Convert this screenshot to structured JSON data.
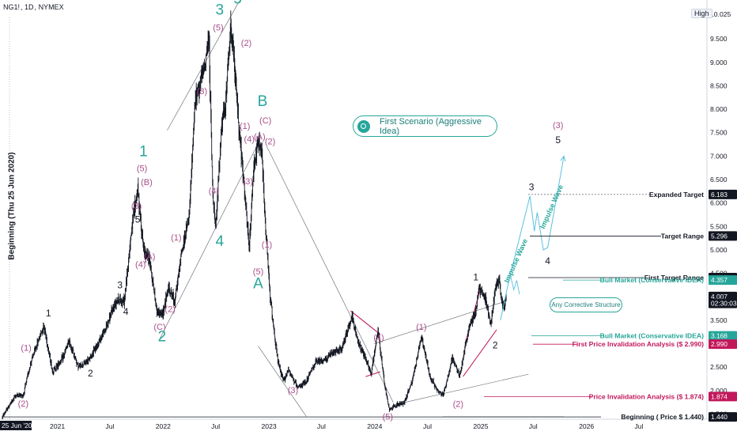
{
  "header": {
    "symbol": "NG1!",
    "interval": "1D",
    "exchange": "NYMEX",
    "high_label": "High"
  },
  "beginning_vertical": "Beginning (Thu 25 Jun 2020)",
  "scenario_label": "First Scenario (Aggressive Idea)",
  "corrective_label": "Any Corrective Structure",
  "colors": {
    "candles": "#131722",
    "teal": "#26a69a",
    "purple": "#a8508c",
    "magenta": "#c2185b",
    "cyan": "#5bc0de",
    "gray": "#9598a1",
    "axis": "#131722"
  },
  "chart_data": {
    "type": "candlestick",
    "title": "",
    "ylim": [
      1.2,
      10.1
    ],
    "yticks": [
      "10.025",
      "9.500",
      "9.000",
      "8.500",
      "8.000",
      "7.500",
      "7.000",
      "6.500",
      "6.000",
      "5.500",
      "5.000",
      "4.500",
      "4.000",
      "3.500",
      "3.000",
      "2.500",
      "2.000",
      "1.500"
    ],
    "xticks": [
      "25 Jun '20",
      "2021",
      "Jul",
      "2022",
      "Jul",
      "2023",
      "Jul",
      "2024",
      "Jul",
      "2025",
      "Jul",
      "2026",
      "Jul"
    ],
    "price_series": {
      "start": "2020-06-25",
      "points": [
        [
          "2020-06-25",
          1.44
        ],
        [
          "2020-08-10",
          1.9
        ],
        [
          "2020-09-05",
          1.9
        ],
        [
          "2020-10-01",
          2.6
        ],
        [
          "2020-11-15",
          3.4
        ],
        [
          "2020-12-15",
          2.4
        ],
        [
          "2021-01-20",
          2.7
        ],
        [
          "2021-02-10",
          3.05
        ],
        [
          "2021-03-15",
          2.5
        ],
        [
          "2021-04-20",
          2.65
        ],
        [
          "2021-06-15",
          3.3
        ],
        [
          "2021-07-25",
          3.95
        ],
        [
          "2021-08-20",
          3.9
        ],
        [
          "2021-09-15",
          5.5
        ],
        [
          "2021-10-05",
          6.3
        ],
        [
          "2021-10-25",
          5.0
        ],
        [
          "2021-11-15",
          4.8
        ],
        [
          "2021-12-10",
          3.7
        ],
        [
          "2021-12-28",
          3.6
        ],
        [
          "2022-01-20",
          4.2
        ],
        [
          "2022-02-10",
          3.9
        ],
        [
          "2022-03-07",
          5.0
        ],
        [
          "2022-04-01",
          5.7
        ],
        [
          "2022-04-20",
          8.1
        ],
        [
          "2022-05-05",
          8.5
        ],
        [
          "2022-05-20",
          8.8
        ],
        [
          "2022-06-08",
          9.5
        ],
        [
          "2022-06-20",
          6.4
        ],
        [
          "2022-07-01",
          5.4
        ],
        [
          "2022-07-20",
          7.5
        ],
        [
          "2022-08-05",
          8.2
        ],
        [
          "2022-08-23",
          9.85
        ],
        [
          "2022-09-05",
          8.8
        ],
        [
          "2022-09-20",
          7.6
        ],
        [
          "2022-10-05",
          6.5
        ],
        [
          "2022-10-25",
          5.0
        ],
        [
          "2022-11-10",
          6.8
        ],
        [
          "2022-11-25",
          7.3
        ],
        [
          "2022-12-07",
          7.1
        ],
        [
          "2022-12-20",
          5.5
        ],
        [
          "2023-01-05",
          4.0
        ],
        [
          "2023-02-01",
          2.6
        ],
        [
          "2023-02-20",
          2.2
        ],
        [
          "2023-03-10",
          2.45
        ],
        [
          "2023-04-10",
          2.05
        ],
        [
          "2023-05-10",
          2.2
        ],
        [
          "2023-06-10",
          2.6
        ],
        [
          "2023-07-10",
          2.65
        ],
        [
          "2023-08-10",
          2.8
        ],
        [
          "2023-09-10",
          2.9
        ],
        [
          "2023-10-15",
          3.6
        ],
        [
          "2023-11-01",
          3.1
        ],
        [
          "2023-12-01",
          2.7
        ],
        [
          "2023-12-20",
          2.35
        ],
        [
          "2024-01-12",
          3.3
        ],
        [
          "2024-02-05",
          2.1
        ],
        [
          "2024-02-20",
          1.6
        ],
        [
          "2024-03-15",
          1.7
        ],
        [
          "2024-04-10",
          1.72
        ],
        [
          "2024-05-10",
          2.2
        ],
        [
          "2024-06-10",
          3.15
        ],
        [
          "2024-07-10",
          2.3
        ],
        [
          "2024-08-05",
          2.0
        ],
        [
          "2024-08-25",
          1.9
        ],
        [
          "2024-09-25",
          2.7
        ],
        [
          "2024-10-20",
          2.3
        ],
        [
          "2024-11-20",
          3.3
        ],
        [
          "2024-12-15",
          3.7
        ],
        [
          "2024-12-27",
          4.2
        ],
        [
          "2025-01-20",
          3.9
        ],
        [
          "2025-02-05",
          3.4
        ],
        [
          "2025-02-15",
          4.0
        ],
        [
          "2025-03-05",
          4.4
        ],
        [
          "2025-03-12",
          4.0
        ],
        [
          "2025-03-20",
          3.75
        ],
        [
          "2025-03-31",
          4.007
        ]
      ]
    },
    "price_labels": [
      {
        "value": "10.025",
        "price": 10.025
      },
      {
        "value": "6.183",
        "price": 6.183
      },
      {
        "value": "5.296",
        "price": 5.296
      },
      {
        "value": "4.409",
        "price": 4.409
      },
      {
        "value": "4.357",
        "price": 4.357
      },
      {
        "value": "4.007",
        "price": 4.007
      },
      {
        "value": "02:30:03",
        "price": 3.86
      },
      {
        "value": "3.168",
        "price": 3.168
      },
      {
        "value": "2.990",
        "price": 2.99
      },
      {
        "value": "1.874",
        "price": 1.874
      },
      {
        "value": "1.440",
        "price": 1.44
      }
    ],
    "horizontal_levels": [
      {
        "text": "Expanded Target",
        "price": 6.183
      },
      {
        "text": "Target Range",
        "price": 5.296
      },
      {
        "text": "First Target Range",
        "price": 4.409
      },
      {
        "text": "Bull Market (Conservative IDEA)",
        "price": 4.357
      },
      {
        "text": "Bull Market (Conservative IDEA)",
        "price": 3.168
      },
      {
        "text": "First Price Invalidation Analysis ($ 2.990)",
        "price": 2.99
      },
      {
        "text": "Price Invalidation Analysis ($ 1.874)",
        "price": 1.874
      },
      {
        "text": "Beginning ( Price $ 1.440)",
        "price": 1.44
      }
    ],
    "wave_labels": [
      {
        "text": "(1)",
        "date": "2020-09-15",
        "price": 2.85,
        "style": "purple"
      },
      {
        "text": "(2)",
        "date": "2020-09-05",
        "price": 1.66,
        "style": "purple"
      },
      {
        "text": "1",
        "date": "2020-12-01",
        "price": 3.58,
        "style": "black"
      },
      {
        "text": "2",
        "date": "2021-04-25",
        "price": 2.3,
        "style": "black"
      },
      {
        "text": "3",
        "date": "2021-08-05",
        "price": 4.18,
        "style": "black"
      },
      {
        "text": "4",
        "date": "2021-08-25",
        "price": 3.62,
        "style": "black"
      },
      {
        "text": "5",
        "date": "2021-10-05",
        "price": 5.58,
        "style": "black"
      },
      {
        "text": "(3)",
        "date": "2021-10-01",
        "price": 5.88,
        "style": "purple"
      },
      {
        "text": "(B)",
        "date": "2021-11-05",
        "price": 6.38,
        "style": "purple"
      },
      {
        "text": "(5)",
        "date": "2021-10-20",
        "price": 6.68,
        "style": "purple"
      },
      {
        "text": "1",
        "date": "2021-10-25",
        "price": 7.0,
        "style": "teal-big"
      },
      {
        "text": "(4)",
        "date": "2021-10-15",
        "price": 4.63,
        "style": "purple"
      },
      {
        "text": "(A)",
        "date": "2021-11-15",
        "price": 4.8,
        "style": "purple"
      },
      {
        "text": "(2)",
        "date": "2022-01-25",
        "price": 3.68,
        "style": "purple"
      },
      {
        "text": "(C)",
        "date": "2021-12-20",
        "price": 3.3,
        "style": "purple"
      },
      {
        "text": "2",
        "date": "2021-12-28",
        "price": 3.05,
        "style": "teal-big"
      },
      {
        "text": "(1)",
        "date": "2022-02-15",
        "price": 5.2,
        "style": "purple"
      },
      {
        "text": "(3)",
        "date": "2022-05-15",
        "price": 8.32,
        "style": "purple"
      },
      {
        "text": "(4)",
        "date": "2022-06-25",
        "price": 6.2,
        "style": "purple"
      },
      {
        "text": "(5)",
        "date": "2022-07-10",
        "price": 9.68,
        "style": "purple"
      },
      {
        "text": "3",
        "date": "2022-07-15",
        "price": 10.02,
        "style": "teal-big"
      },
      {
        "text": "4",
        "date": "2022-07-15",
        "price": 5.08,
        "style": "teal-big"
      },
      {
        "text": "5",
        "date": "2022-09-15",
        "price": 10.25,
        "style": "teal-big"
      },
      {
        "text": "(2)",
        "date": "2022-10-15",
        "price": 9.35,
        "style": "purple"
      },
      {
        "text": "(1)",
        "date": "2022-10-10",
        "price": 7.58,
        "style": "purple"
      },
      {
        "text": "(4)",
        "date": "2022-10-25",
        "price": 7.3,
        "style": "purple"
      },
      {
        "text": "(A)",
        "date": "2022-11-30",
        "price": 7.35,
        "style": "purple"
      },
      {
        "text": "(3)",
        "date": "2022-10-20",
        "price": 6.4,
        "style": "purple"
      },
      {
        "text": "(1)",
        "date": "2022-12-25",
        "price": 5.05,
        "style": "purple"
      },
      {
        "text": "(5)",
        "date": "2022-11-25",
        "price": 4.48,
        "style": "purple"
      },
      {
        "text": "A",
        "date": "2022-11-25",
        "price": 4.18,
        "style": "teal-big"
      },
      {
        "text": "B",
        "date": "2022-12-10",
        "price": 8.07,
        "style": "teal-big"
      },
      {
        "text": "(C)",
        "date": "2022-12-20",
        "price": 7.7,
        "style": "purple"
      },
      {
        "text": "(2)",
        "date": "2023-01-05",
        "price": 7.25,
        "style": "purple"
      },
      {
        "text": "(3)",
        "date": "2023-03-25",
        "price": 1.95,
        "style": "purple"
      },
      {
        "text": "(4)",
        "date": "2024-01-15",
        "price": 3.07,
        "style": "purple"
      },
      {
        "text": "(5)",
        "date": "2024-02-15",
        "price": 1.38,
        "style": "purple"
      },
      {
        "text": "(1)",
        "date": "2024-06-10",
        "price": 3.3,
        "style": "purple"
      },
      {
        "text": "(2)",
        "date": "2024-10-15",
        "price": 1.65,
        "style": "purple"
      },
      {
        "text": "1",
        "date": "2024-12-15",
        "price": 4.35,
        "style": "black"
      },
      {
        "text": "2",
        "date": "2025-02-20",
        "price": 2.9,
        "style": "black"
      },
      {
        "text": "3",
        "date": "2025-06-25",
        "price": 6.27,
        "style": "black"
      },
      {
        "text": "4",
        "date": "2025-08-20",
        "price": 4.7,
        "style": "black"
      },
      {
        "text": "(3)",
        "date": "2025-09-25",
        "price": 7.6,
        "style": "purple"
      },
      {
        "text": "5",
        "date": "2025-09-25",
        "price": 7.28,
        "style": "black"
      }
    ],
    "impulse_labels": [
      {
        "text": "Impulse Wave",
        "date": "2025-05-10",
        "price": 4.75,
        "angle": -66
      },
      {
        "text": "Impulse Wave",
        "date": "2025-09-10",
        "price": 5.9,
        "angle": -66
      }
    ],
    "projection": [
      [
        "2025-03-10",
        3.5
      ],
      [
        "2025-04-10",
        4.4
      ],
      [
        "2025-06-20",
        6.15
      ],
      [
        "2025-07-05",
        5.4
      ],
      [
        "2025-07-15",
        5.8
      ],
      [
        "2025-08-05",
        5.0
      ],
      [
        "2025-08-20",
        5.05
      ],
      [
        "2025-10-15",
        7.0
      ]
    ],
    "corrective_projection": [
      [
        "2025-04-15",
        4.42
      ],
      [
        "2025-04-25",
        4.15
      ],
      [
        "2025-05-05",
        4.35
      ],
      [
        "2025-05-15",
        4.05
      ]
    ]
  }
}
